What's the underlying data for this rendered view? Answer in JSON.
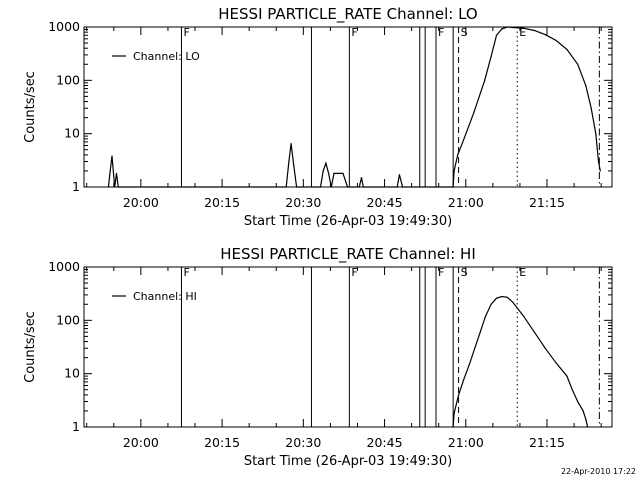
{
  "timestamp": "22-Apr-2010 17:22",
  "chart_data": [
    {
      "type": "line",
      "title": "HESSI PARTICLE_RATE Channel: LO",
      "xlabel": "Start Time (26-Apr-03 19:49:30)",
      "ylabel": "Counts/sec",
      "yscale": "log",
      "ylim": [
        1,
        1000
      ],
      "yticks": [
        "1",
        "10",
        "100",
        "1000"
      ],
      "xlim": [
        "19:49:30",
        "21:27:00"
      ],
      "xticks": [
        "20:00",
        "20:15",
        "20:30",
        "20:45",
        "21:00",
        "21:15"
      ],
      "legend": {
        "position": "top-left"
      },
      "series": [
        {
          "name": "Channel: LO",
          "points": [
            [
              "19:54:00",
              1
            ],
            [
              "19:54:20",
              2
            ],
            [
              "19:54:40",
              3.8
            ],
            [
              "19:55:10",
              1
            ],
            [
              "19:55:30",
              1.8
            ],
            [
              "19:55:50",
              1
            ],
            [
              "20:26:50",
              1
            ],
            [
              "20:27:20",
              3
            ],
            [
              "20:27:45",
              6.5
            ],
            [
              "20:28:15",
              2.5
            ],
            [
              "20:28:45",
              1
            ],
            [
              "20:33:10",
              1
            ],
            [
              "20:33:40",
              2
            ],
            [
              "20:34:10",
              2.8
            ],
            [
              "20:34:40",
              1.8
            ],
            [
              "20:35:10",
              1
            ],
            [
              "20:35:40",
              1.8
            ],
            [
              "20:37:20",
              1.8
            ],
            [
              "20:38:10",
              1
            ],
            [
              "20:40:20",
              1
            ],
            [
              "20:40:45",
              1.5
            ],
            [
              "20:41:05",
              1
            ],
            [
              "20:47:20",
              1
            ],
            [
              "20:47:45",
              1.7
            ],
            [
              "20:48:20",
              1
            ],
            [
              "20:57:40",
              1
            ],
            [
              "20:57:50",
              2
            ],
            [
              "20:58:30",
              4
            ],
            [
              "20:59:40",
              8
            ],
            [
              "21:01:30",
              25
            ],
            [
              "21:03:30",
              100
            ],
            [
              "21:04:40",
              280
            ],
            [
              "21:05:40",
              700
            ],
            [
              "21:06:40",
              920
            ],
            [
              "21:07:40",
              1000
            ],
            [
              "21:08:40",
              980
            ],
            [
              "21:10:40",
              950
            ],
            [
              "21:12:40",
              860
            ],
            [
              "21:14:40",
              720
            ],
            [
              "21:16:40",
              560
            ],
            [
              "21:18:40",
              380
            ],
            [
              "21:20:40",
              200
            ],
            [
              "21:22:10",
              80
            ],
            [
              "21:23:10",
              30
            ],
            [
              "21:24:00",
              10
            ],
            [
              "21:24:30",
              3
            ],
            [
              "21:24:50",
              2
            ]
          ]
        }
      ],
      "vlines": [
        {
          "t": "20:07:30",
          "style": "solid",
          "label": "F"
        },
        {
          "t": "20:31:30",
          "style": "solid",
          "label": ""
        },
        {
          "t": "20:38:30",
          "style": "solid",
          "label": "F"
        },
        {
          "t": "20:51:30",
          "style": "solid",
          "label": ""
        },
        {
          "t": "20:52:30",
          "style": "solid",
          "label": ""
        },
        {
          "t": "20:54:30",
          "style": "solid",
          "label": "F"
        },
        {
          "t": "20:57:40",
          "style": "solid",
          "label": ""
        },
        {
          "t": "20:58:40",
          "style": "dashed",
          "label": "S"
        },
        {
          "t": "21:09:30",
          "style": "dotted",
          "label": "E"
        },
        {
          "t": "21:24:40",
          "style": "dashdot",
          "label": ""
        }
      ]
    },
    {
      "type": "line",
      "title": "HESSI PARTICLE_RATE Channel: HI",
      "xlabel": "Start Time (26-Apr-03 19:49:30)",
      "ylabel": "Counts/sec",
      "yscale": "log",
      "ylim": [
        1,
        1000
      ],
      "yticks": [
        "1",
        "10",
        "100",
        "1000"
      ],
      "xlim": [
        "19:49:30",
        "21:27:00"
      ],
      "xticks": [
        "20:00",
        "20:15",
        "20:30",
        "20:45",
        "21:00",
        "21:15"
      ],
      "legend": {
        "position": "top-left"
      },
      "series": [
        {
          "name": "Channel: HI",
          "points": [
            [
              "20:57:40",
              1
            ],
            [
              "20:57:50",
              1.8
            ],
            [
              "20:58:40",
              4
            ],
            [
              "20:59:40",
              8
            ],
            [
              "21:00:40",
              15
            ],
            [
              "21:01:40",
              30
            ],
            [
              "21:02:40",
              60
            ],
            [
              "21:03:40",
              120
            ],
            [
              "21:04:40",
              200
            ],
            [
              "21:05:40",
              260
            ],
            [
              "21:06:40",
              280
            ],
            [
              "21:07:40",
              270
            ],
            [
              "21:08:40",
              220
            ],
            [
              "21:10:40",
              120
            ],
            [
              "21:12:40",
              60
            ],
            [
              "21:14:40",
              30
            ],
            [
              "21:16:40",
              16
            ],
            [
              "21:18:40",
              9
            ],
            [
              "21:19:40",
              5
            ],
            [
              "21:20:40",
              3
            ],
            [
              "21:21:40",
              2
            ],
            [
              "21:22:10",
              1.4
            ],
            [
              "21:22:30",
              1
            ]
          ]
        }
      ],
      "vlines": [
        {
          "t": "20:07:30",
          "style": "solid",
          "label": "F"
        },
        {
          "t": "20:31:30",
          "style": "solid",
          "label": ""
        },
        {
          "t": "20:38:30",
          "style": "solid",
          "label": "F"
        },
        {
          "t": "20:51:30",
          "style": "solid",
          "label": ""
        },
        {
          "t": "20:52:30",
          "style": "solid",
          "label": ""
        },
        {
          "t": "20:54:30",
          "style": "solid",
          "label": "F"
        },
        {
          "t": "20:57:40",
          "style": "solid",
          "label": ""
        },
        {
          "t": "20:58:40",
          "style": "dashed",
          "label": "S"
        },
        {
          "t": "21:09:30",
          "style": "dotted",
          "label": "E"
        },
        {
          "t": "21:24:40",
          "style": "dashdot",
          "label": ""
        }
      ]
    }
  ]
}
